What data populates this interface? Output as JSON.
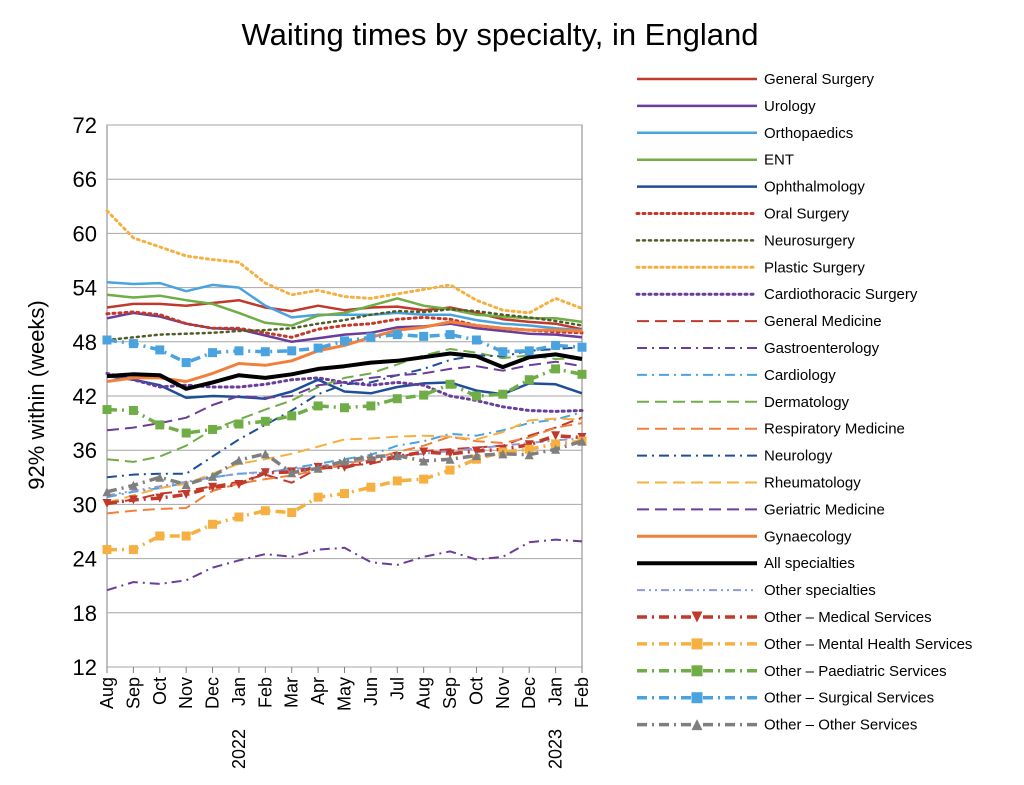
{
  "chart_data": {
    "type": "line",
    "title": "Waiting times by specialty, in England",
    "ylabel": "92% within  (weeks)",
    "xlabel": "",
    "ylim": [
      12,
      72
    ],
    "yticks": [
      12,
      18,
      24,
      30,
      36,
      42,
      48,
      54,
      60,
      66,
      72
    ],
    "x": [
      "Aug",
      "Sep",
      "Oct",
      "Nov",
      "Dec",
      "Jan",
      "Feb",
      "Mar",
      "Apr",
      "May",
      "Jun",
      "Jul",
      "Aug",
      "Sep",
      "Oct",
      "Nov",
      "Dec",
      "Jan",
      "Feb"
    ],
    "year_labels": [
      {
        "index": 5,
        "label": "2022"
      },
      {
        "index": 17,
        "label": "2023"
      }
    ],
    "grid": "horizontal",
    "legend": "right",
    "series": [
      {
        "name": "General  Surgery",
        "color": "#c0392b",
        "dash": "solid",
        "width": 2.5,
        "marker": "none",
        "values": [
          51.8,
          52.2,
          52.2,
          52.0,
          52.3,
          52.6,
          51.8,
          51.4,
          52.0,
          51.5,
          51.8,
          51.9,
          51.5,
          51.8,
          51.2,
          50.5,
          50.2,
          50.0,
          49.4
        ]
      },
      {
        "name": "Urology",
        "color": "#6a3d9a",
        "dash": "solid",
        "width": 2.5,
        "marker": "none",
        "values": [
          50.6,
          51.2,
          50.8,
          50.0,
          49.5,
          49.4,
          48.7,
          48.0,
          48.4,
          48.8,
          49.0,
          49.6,
          49.7,
          50.0,
          49.5,
          49.2,
          48.9,
          48.8,
          48.5
        ]
      },
      {
        "name": "Orthopaedics",
        "color": "#4aa3df",
        "dash": "solid",
        "width": 2.5,
        "marker": "none",
        "values": [
          54.6,
          54.4,
          54.5,
          53.6,
          54.3,
          54.0,
          52.0,
          50.7,
          51.0,
          51.0,
          51.0,
          51.2,
          51.0,
          51.0,
          50.4,
          50.0,
          49.8,
          49.5,
          49.3
        ]
      },
      {
        "name": "ENT",
        "color": "#70ad47",
        "dash": "solid",
        "width": 2.5,
        "marker": "none",
        "values": [
          53.2,
          52.9,
          53.1,
          52.6,
          52.2,
          51.2,
          50.1,
          49.8,
          50.9,
          51.2,
          52.0,
          52.8,
          52.0,
          51.6,
          51.0,
          50.8,
          50.6,
          50.6,
          50.2
        ]
      },
      {
        "name": "Ophthalmology",
        "color": "#1f4e99",
        "dash": "solid",
        "width": 2.5,
        "marker": "none",
        "values": [
          44.2,
          43.8,
          43.2,
          41.8,
          42.0,
          41.9,
          41.7,
          42.5,
          43.8,
          42.5,
          42.3,
          43.0,
          43.4,
          43.5,
          42.6,
          42.2,
          43.4,
          43.3,
          42.3
        ]
      },
      {
        "name": "Oral  Surgery",
        "color": "#c0392b",
        "dash": "dot",
        "width": 3,
        "marker": "none",
        "values": [
          51.1,
          51.3,
          51.0,
          50.0,
          49.5,
          49.5,
          49.0,
          48.5,
          49.4,
          49.8,
          50.0,
          50.5,
          50.7,
          50.5,
          49.8,
          49.5,
          49.3,
          49.1,
          49.0
        ]
      },
      {
        "name": "Neurosurgery",
        "color": "#4e5d28",
        "dash": "dot",
        "width": 2.5,
        "marker": "none",
        "values": [
          48.2,
          48.5,
          48.8,
          48.9,
          49.0,
          49.2,
          49.3,
          49.5,
          50.0,
          50.4,
          51.0,
          51.4,
          51.3,
          51.6,
          51.4,
          51.0,
          50.7,
          50.3,
          49.8
        ]
      },
      {
        "name": "Plastic  Surgery",
        "color": "#f5b041",
        "dash": "dot",
        "width": 3,
        "marker": "none",
        "values": [
          62.5,
          59.5,
          58.5,
          57.5,
          57.1,
          56.8,
          54.5,
          53.2,
          53.7,
          53.0,
          52.8,
          53.3,
          53.8,
          54.3,
          52.6,
          51.5,
          51.2,
          52.8,
          51.7
        ]
      },
      {
        "name": "Cardiothoracic  Surgery",
        "color": "#6a3d9a",
        "dash": "dot",
        "width": 3,
        "marker": "none",
        "values": [
          44.5,
          43.8,
          43.0,
          43.2,
          43.0,
          43.0,
          43.3,
          43.8,
          44.0,
          43.5,
          43.2,
          43.5,
          43.2,
          42.0,
          41.5,
          40.8,
          40.4,
          40.3,
          40.4
        ]
      },
      {
        "name": "General  Medicine",
        "color": "#c0392b",
        "dash": "longdash",
        "width": 2,
        "marker": "none",
        "values": [
          30.2,
          30.5,
          31.2,
          31.5,
          32.0,
          32.5,
          33.3,
          32.4,
          34.0,
          34.3,
          34.5,
          35.2,
          35.9,
          36.1,
          36.3,
          36.5,
          37.6,
          38.5,
          39.6
        ]
      },
      {
        "name": "Gastroenterology",
        "color": "#6a3d9a",
        "dash": "dashdot",
        "width": 2,
        "marker": "none",
        "values": [
          20.5,
          21.4,
          21.2,
          21.6,
          23.0,
          23.8,
          24.5,
          24.2,
          25.0,
          25.2,
          23.6,
          23.3,
          24.2,
          24.8,
          23.9,
          24.2,
          25.8,
          26.1,
          25.9
        ]
      },
      {
        "name": "Cardiology",
        "color": "#4aa3df",
        "dash": "dashdot",
        "width": 2,
        "marker": "none",
        "values": [
          30.8,
          31.4,
          31.8,
          32.4,
          33.0,
          33.4,
          33.5,
          34.0,
          34.5,
          35.0,
          35.5,
          36.5,
          37.0,
          37.8,
          37.6,
          38.2,
          39.0,
          39.4,
          40.2
        ]
      },
      {
        "name": "Dermatology",
        "color": "#70ad47",
        "dash": "longdash",
        "width": 2,
        "marker": "none",
        "values": [
          35.0,
          34.7,
          35.3,
          36.5,
          38.3,
          39.4,
          40.5,
          41.5,
          43.0,
          44.0,
          44.5,
          45.5,
          46.5,
          47.2,
          46.8,
          46.2,
          46.5,
          46.1,
          46.2
        ]
      },
      {
        "name": "Respiratory  Medicine",
        "color": "#f0803c",
        "dash": "longdash",
        "width": 2,
        "marker": "none",
        "values": [
          29.0,
          29.3,
          29.5,
          29.6,
          31.5,
          32.3,
          32.8,
          33.2,
          33.8,
          34.5,
          35.0,
          35.8,
          36.5,
          37.5,
          37.0,
          36.8,
          37.4,
          38.5,
          39.0
        ]
      },
      {
        "name": "Neurology",
        "color": "#1f4e99",
        "dash": "dashdot",
        "width": 2,
        "marker": "none",
        "values": [
          33.0,
          33.3,
          33.4,
          33.4,
          35.3,
          37.2,
          38.8,
          40.4,
          42.2,
          43.3,
          43.5,
          44.3,
          45.0,
          46.0,
          46.5,
          46.4,
          47.0,
          47.2,
          47.4
        ]
      },
      {
        "name": "Rheumatology",
        "color": "#f5b041",
        "dash": "longdash",
        "width": 2,
        "marker": "none",
        "values": [
          30.2,
          31.0,
          31.8,
          32.3,
          33.4,
          34.5,
          35.0,
          35.6,
          36.4,
          37.2,
          37.3,
          37.5,
          37.6,
          37.5,
          37.2,
          38.0,
          39.3,
          39.5,
          39.4
        ]
      },
      {
        "name": "Geriatric  Medicine",
        "color": "#6a3d9a",
        "dash": "longdash",
        "width": 2,
        "marker": "none",
        "values": [
          38.2,
          38.5,
          39.0,
          39.6,
          41.0,
          42.0,
          41.8,
          42.0,
          43.2,
          43.5,
          44.0,
          44.3,
          44.5,
          45.0,
          45.3,
          44.8,
          45.4,
          45.8,
          45.3
        ]
      },
      {
        "name": "Gynaecology",
        "color": "#f0803c",
        "dash": "solid",
        "width": 3,
        "marker": "none",
        "values": [
          43.6,
          44.0,
          44.0,
          43.6,
          44.5,
          45.6,
          45.4,
          45.9,
          47.0,
          47.6,
          48.5,
          49.3,
          49.6,
          50.2,
          49.8,
          49.5,
          49.3,
          49.3,
          49.2
        ]
      },
      {
        "name": "All  specialties",
        "color": "#000000",
        "dash": "solid",
        "width": 4,
        "marker": "none",
        "values": [
          44.2,
          44.4,
          44.3,
          42.8,
          43.5,
          44.3,
          44.0,
          44.4,
          45.0,
          45.3,
          45.7,
          45.9,
          46.3,
          46.7,
          46.4,
          45.2,
          46.3,
          46.6,
          46.1
        ]
      },
      {
        "name": "Other  specialties",
        "color": "#8e9bd4",
        "dash": "dashdotdot",
        "width": 2,
        "marker": "none",
        "values": [
          31.0,
          31.5,
          32.0,
          32.5,
          33.0,
          33.4,
          33.6,
          33.9,
          34.2,
          34.6,
          35.0,
          35.3,
          35.6,
          35.9,
          36.2,
          36.5,
          36.8,
          37.1,
          37.3
        ]
      },
      {
        "name": "Other – Medical Services",
        "color": "#c0392b",
        "dash": "dashdot",
        "width": 3.5,
        "marker": "triangle-down",
        "values": [
          30.1,
          30.5,
          30.7,
          31.1,
          31.9,
          32.2,
          33.5,
          33.6,
          34.1,
          34.1,
          34.8,
          35.3,
          35.8,
          35.6,
          35.9,
          36.1,
          36.6,
          37.6,
          37.4
        ]
      },
      {
        "name": "Other – Mental Health Services",
        "color": "#f5b041",
        "dash": "dashdot",
        "width": 3.5,
        "marker": "square",
        "values": [
          25.0,
          25.0,
          26.5,
          26.5,
          27.8,
          28.6,
          29.3,
          29.1,
          30.8,
          31.2,
          31.9,
          32.6,
          32.8,
          33.8,
          35.0,
          35.8,
          36.1,
          36.7,
          37.0
        ]
      },
      {
        "name": "Other – Paediatric Services",
        "color": "#70ad47",
        "dash": "dashdot",
        "width": 3.5,
        "marker": "square",
        "values": [
          40.5,
          40.4,
          38.8,
          37.9,
          38.3,
          38.9,
          39.2,
          39.8,
          40.9,
          40.7,
          40.9,
          41.7,
          42.1,
          43.3,
          42.0,
          42.2,
          43.8,
          45.0,
          44.4
        ]
      },
      {
        "name": "Other – Surgical Services",
        "color": "#4aa3df",
        "dash": "dashdot",
        "width": 3.5,
        "marker": "square",
        "values": [
          48.2,
          47.8,
          47.1,
          45.7,
          46.8,
          47.0,
          46.9,
          47.0,
          47.3,
          48.1,
          48.5,
          48.8,
          48.6,
          48.8,
          48.2,
          46.9,
          47.0,
          47.6,
          47.4
        ]
      },
      {
        "name": "Other – Other Services",
        "color": "#7f7f7f",
        "dash": "dashdot",
        "width": 3.5,
        "marker": "triangle-up",
        "values": [
          31.4,
          32.1,
          33.0,
          32.2,
          33.1,
          34.9,
          35.6,
          33.5,
          34.0,
          34.8,
          35.3,
          35.4,
          34.8,
          35.0,
          35.4,
          35.6,
          35.5,
          36.1,
          37.0
        ]
      }
    ]
  }
}
